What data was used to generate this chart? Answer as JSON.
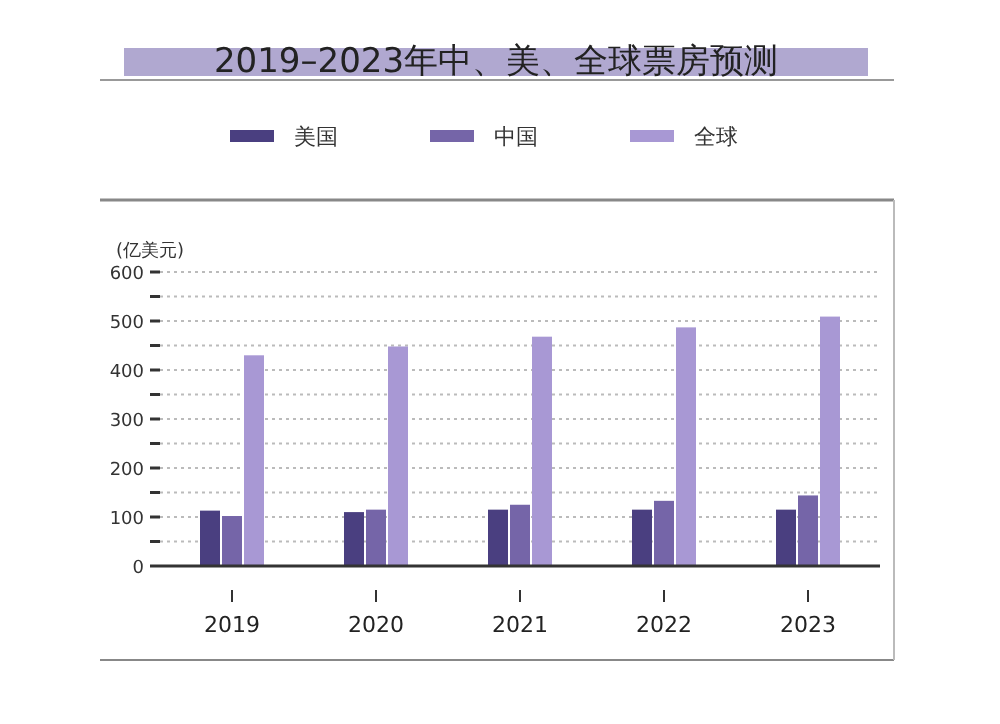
{
  "chart_data": {
    "type": "bar",
    "title": "2019–2023年中、美、全球票房预测",
    "ylabel": "(亿美元)",
    "categories": [
      "2019",
      "2020",
      "2021",
      "2022",
      "2023"
    ],
    "series": [
      {
        "name": "美国",
        "color": "#4a3f80",
        "values": [
          113,
          110,
          115,
          115,
          115
        ]
      },
      {
        "name": "中国",
        "color": "#7565a8",
        "values": [
          102,
          115,
          125,
          133,
          144
        ]
      },
      {
        "name": "全球",
        "color": "#a898d4",
        "values": [
          430,
          448,
          468,
          487,
          509
        ]
      }
    ],
    "ylim": [
      0,
      600
    ],
    "yticks": [
      0,
      {
        "value": 50,
        "label": null
      },
      100,
      {
        "value": 150,
        "label": null
      },
      200,
      {
        "value": 250,
        "label": null
      },
      300,
      {
        "value": 350,
        "label": null
      },
      400,
      {
        "value": 450,
        "label": null
      },
      500,
      {
        "value": 550,
        "label": null
      },
      600
    ],
    "grid": "y",
    "legend": "top"
  }
}
